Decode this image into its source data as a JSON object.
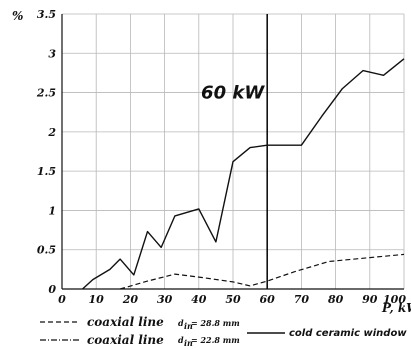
{
  "chart_data": {
    "type": "line",
    "y_unit": "%",
    "x_unit": "P, kW",
    "xlim": [
      0,
      100
    ],
    "ylim": [
      0,
      3.5
    ],
    "xticks": [
      0,
      10,
      20,
      30,
      40,
      50,
      60,
      70,
      80,
      90,
      100
    ],
    "yticks": [
      0,
      0.5,
      1,
      1.5,
      2,
      2.5,
      3,
      3.5
    ],
    "grid": true,
    "annotation": {
      "text": "60 kW",
      "x": 60
    },
    "series": [
      {
        "name": "cold ceramic window",
        "style": "solid",
        "x": [
          6,
          9,
          14,
          17,
          21,
          25,
          29,
          33,
          40,
          45,
          50,
          55,
          60,
          63,
          70,
          76,
          82,
          88,
          94,
          100
        ],
        "y": [
          0,
          0.12,
          0.25,
          0.38,
          0.18,
          0.73,
          0.53,
          0.93,
          1.02,
          0.6,
          1.62,
          1.8,
          1.83,
          1.83,
          1.83,
          2.2,
          2.55,
          2.78,
          2.72,
          2.93
        ]
      },
      {
        "name": "coaxial line d = 28.8 mm",
        "style": "dashed",
        "x": [
          17,
          25,
          33,
          42,
          50,
          55,
          60,
          68,
          78,
          90,
          100
        ],
        "y": [
          0,
          0.1,
          0.19,
          0.14,
          0.09,
          0.04,
          0.1,
          0.22,
          0.35,
          0.4,
          0.44
        ]
      }
    ],
    "legend": [
      {
        "style": "dashed",
        "label": "coaxial line",
        "sub": "d",
        "sub_index": "in",
        "sub_value": "= 28.8 mm"
      },
      {
        "style": "dashdot",
        "label": "coaxial line",
        "sub": "d",
        "sub_index": "in",
        "sub_value": "= 22.8 mm"
      },
      {
        "style": "solid",
        "label": "cold ceramic window"
      }
    ]
  }
}
